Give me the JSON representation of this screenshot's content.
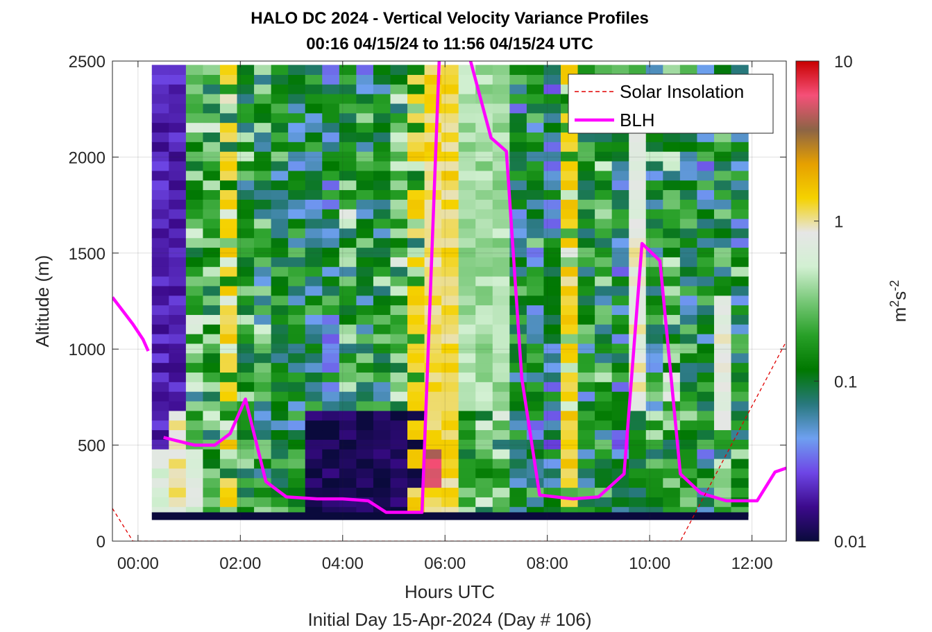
{
  "chart_data": {
    "type": "heatmap",
    "title": "HALO DC 2024 - Vertical Velocity Variance Profiles",
    "subtitle": "00:16 04/15/24 to 11:56 04/15/24  UTC",
    "xlabel": "Hours UTC",
    "xlabel2": "Initial Day 15-Apr-2024 (Day # 106)",
    "ylabel": "Altitude (m)",
    "colorbar_label_base": "m",
    "colorbar_label_exp1": "2",
    "colorbar_label_mid": "s",
    "colorbar_label_exp2": "-2",
    "xlim": [
      -0.5,
      12.67
    ],
    "ylim": [
      0,
      2500
    ],
    "x_ticks": [
      0,
      2,
      4,
      6,
      8,
      10,
      12
    ],
    "x_tick_labels": [
      "00:00",
      "02:00",
      "04:00",
      "06:00",
      "08:00",
      "10:00",
      "12:00"
    ],
    "y_ticks": [
      0,
      500,
      1000,
      1500,
      2000,
      2500
    ],
    "y_tick_labels": [
      "0",
      "500",
      "1000",
      "1500",
      "2000",
      "2500"
    ],
    "colorbar_ticks": [
      0.01,
      0.1,
      1,
      10
    ],
    "colorbar_tick_labels": [
      "0.01",
      "0.1",
      "1",
      "10"
    ],
    "colorbar_scale": "log",
    "colormap": [
      "#0a0a3c",
      "#3c0a8c",
      "#6e46e6",
      "#6ea0f0",
      "#28787d",
      "#007800",
      "#28a028",
      "#78c878",
      "#d2f0d2",
      "#e6e6e6",
      "#f5d200",
      "#e6a000",
      "#8c6446",
      "#f55078",
      "#c80000"
    ],
    "grid": true,
    "legend_position": "top-right",
    "legend": [
      {
        "name": "Solar Insolation",
        "color": "#e00000",
        "style": "dashed"
      },
      {
        "name": "BLH",
        "color": "#ff00ff",
        "style": "solid"
      }
    ],
    "heatmap": {
      "x_start": 0.27,
      "x_end": 11.93,
      "bin_width_hours": 0.333,
      "y_start": 130,
      "y_end": 2500,
      "bin_height_m": 50,
      "floor_band_m": [
        110,
        150
      ],
      "note_values": "log10 variance per column (hour ranges)"
    },
    "variance_regions": [
      {
        "x0": 0.27,
        "x1": 1.3,
        "y0": 150,
        "y1": 500,
        "level": 0.6
      },
      {
        "x0": 0.27,
        "x1": 1.0,
        "y0": 500,
        "y1": 2500,
        "level": 0.02
      },
      {
        "x0": 3.3,
        "x1": 5.5,
        "y0": 150,
        "y1": 700,
        "level": 0.012
      },
      {
        "x0": 5.5,
        "x1": 6.3,
        "y0": 150,
        "y1": 2500,
        "level": 1.2
      },
      {
        "x0": 5.8,
        "x1": 6.0,
        "y0": 200,
        "y1": 1800,
        "level": 2.5
      },
      {
        "x0": 5.6,
        "x1": 5.9,
        "y0": 280,
        "y1": 460,
        "level": 5.0
      },
      {
        "x0": 6.3,
        "x1": 7.3,
        "y0": 700,
        "y1": 2500,
        "level": 0.4
      },
      {
        "x0": 9.7,
        "x1": 10.0,
        "y0": 700,
        "y1": 2200,
        "level": 0.8
      },
      {
        "x0": 11.3,
        "x1": 11.6,
        "y0": 600,
        "y1": 1300,
        "level": 0.8
      },
      {
        "x0": 0.5,
        "x1": 1.0,
        "y0": 150,
        "y1": 700,
        "level": 0.9
      }
    ],
    "series": [
      {
        "name": "BLH",
        "x": [
          -0.5,
          -0.3,
          -0.1,
          0.1,
          0.2
        ],
        "y": [
          1270,
          1200,
          1130,
          1050,
          990
        ]
      },
      {
        "name": "BLH",
        "x": [
          0.5,
          0.8,
          1.1,
          1.5,
          1.8,
          2.1,
          2.5,
          2.9,
          3.5,
          4.0,
          4.5,
          4.85,
          5.3,
          5.55,
          5.9,
          6.45,
          6.9,
          7.2,
          7.5,
          7.85,
          8.5,
          9.0,
          9.5,
          9.85,
          10.2,
          10.6,
          11.0,
          11.5,
          12.1,
          12.45,
          12.67
        ],
        "y": [
          540,
          520,
          500,
          500,
          560,
          740,
          310,
          230,
          220,
          220,
          210,
          150,
          150,
          150,
          2600,
          2550,
          2100,
          2030,
          850,
          240,
          220,
          230,
          350,
          1550,
          1460,
          350,
          250,
          210,
          210,
          360,
          380
        ]
      },
      {
        "name": "Solar Insolation",
        "x": [
          -0.5,
          -0.1,
          0.0,
          10.6,
          12.67
        ],
        "y": [
          170,
          0,
          0,
          0,
          1040
        ]
      }
    ]
  }
}
